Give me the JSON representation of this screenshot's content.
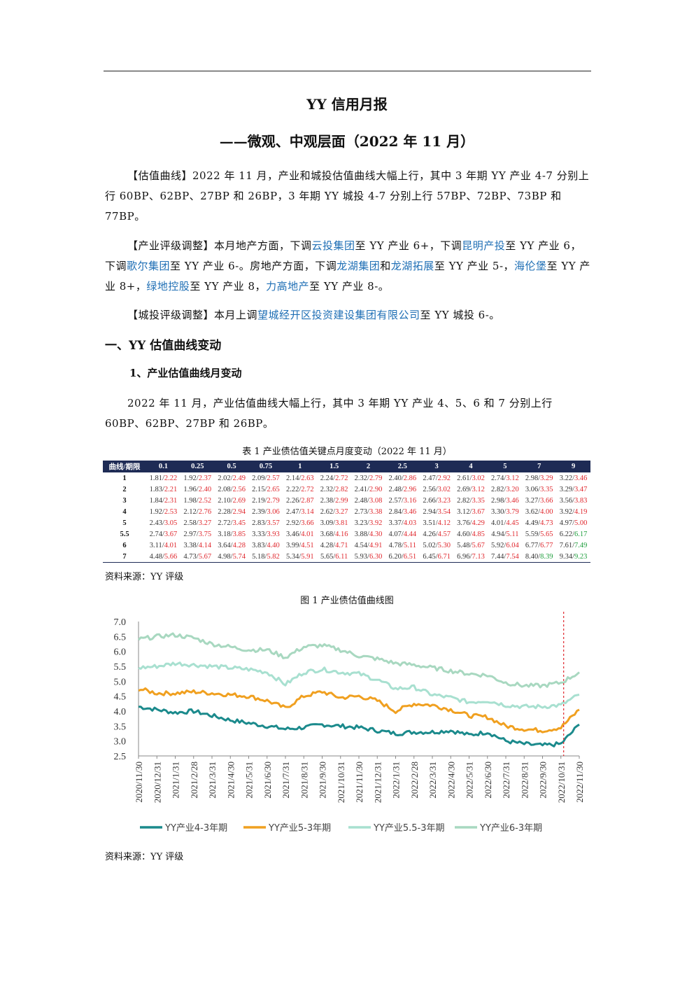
{
  "doc": {
    "title": "YY 信用月报",
    "subtitle": "——微观、中观层面（2022 年 11 月）"
  },
  "summary": {
    "valuation_label": "【估值曲线】",
    "valuation_text": "2022 年 11 月，产业和城投估值曲线大幅上行，其中 3 年期 YY 产业 4-7 分别上行 60BP、62BP、27BP 和 26BP，3 年期 YY 城投 4-7 分别上行 57BP、72BP、73BP 和 77BP。",
    "industry_label": "【产业评级调整】",
    "industry_p1": "本月地产方面，下调",
    "industry_e1": "云投集团",
    "industry_p2": "至 YY 产业 6+，下调",
    "industry_e2": "昆明产投",
    "industry_p3": "至 YY 产业 6，下调",
    "industry_e3": "歌尔集团",
    "industry_p4": "至 YY 产业 6-。房地产方面，下调",
    "industry_e4": "龙湖集团",
    "industry_p5": "和",
    "industry_e5": "龙湖拓展",
    "industry_p6": "至 YY 产业 5-，",
    "industry_e6": "海伦堡",
    "industry_p7": "至 YY 产业 8+，",
    "industry_e7": "绿地控股",
    "industry_p8": "至 YY 产业 8，",
    "industry_e8": "力高地产",
    "industry_p9": "至 YY 产业 8-。",
    "city_label": "【城投评级调整】",
    "city_p1": "本月上调",
    "city_e1": "望城经开区投资建设集团有限公司",
    "city_p2": "至 YY 城投 6-。"
  },
  "section1": {
    "heading": "一、YY 估值曲线变动"
  },
  "section1_1": {
    "heading": "1、产业估值曲线月变动",
    "text": "2022 年 11 月，产业估值曲线大幅上行，其中 3 年期 YY 产业 4、5、6 和 7 分别上行 60BP、62BP、27BP 和 26BP。"
  },
  "table1": {
    "caption": "表 1  产业债估值关键点月度变动（2022 年 11 月）",
    "corner": "曲线/期限",
    "headers": [
      "0.1",
      "0.25",
      "0.5",
      "0.75",
      "1",
      "1.5",
      "2",
      "2.5",
      "3",
      "4",
      "5",
      "7",
      "9"
    ],
    "rows": [
      {
        "label": "1",
        "cells": [
          [
            "1.81",
            "2.22"
          ],
          [
            "1.92",
            "2.37"
          ],
          [
            "2.02",
            "2.49"
          ],
          [
            "2.09",
            "2.57"
          ],
          [
            "2.14",
            "2.63"
          ],
          [
            "2.24",
            "2.72"
          ],
          [
            "2.32",
            "2.79"
          ],
          [
            "2.40",
            "2.86"
          ],
          [
            "2.47",
            "2.92"
          ],
          [
            "2.61",
            "3.02"
          ],
          [
            "2.74",
            "3.12"
          ],
          [
            "2.98",
            "3.29"
          ],
          [
            "3.22",
            "3.46"
          ]
        ]
      },
      {
        "label": "2",
        "cells": [
          [
            "1.83",
            "2.21"
          ],
          [
            "1.96",
            "2.40"
          ],
          [
            "2.08",
            "2.56"
          ],
          [
            "2.15",
            "2.65"
          ],
          [
            "2.22",
            "2.72"
          ],
          [
            "2.32",
            "2.82"
          ],
          [
            "2.41",
            "2.90"
          ],
          [
            "2.48",
            "2.96"
          ],
          [
            "2.56",
            "3.02"
          ],
          [
            "2.69",
            "3.12"
          ],
          [
            "2.82",
            "3.20"
          ],
          [
            "3.06",
            "3.35"
          ],
          [
            "3.29",
            "3.47"
          ]
        ]
      },
      {
        "label": "3",
        "cells": [
          [
            "1.84",
            "2.31"
          ],
          [
            "1.98",
            "2.52"
          ],
          [
            "2.10",
            "2.69"
          ],
          [
            "2.19",
            "2.79"
          ],
          [
            "2.26",
            "2.87"
          ],
          [
            "2.38",
            "2.99"
          ],
          [
            "2.48",
            "3.08"
          ],
          [
            "2.57",
            "3.16"
          ],
          [
            "2.66",
            "3.23"
          ],
          [
            "2.82",
            "3.35"
          ],
          [
            "2.98",
            "3.46"
          ],
          [
            "3.27",
            "3.66"
          ],
          [
            "3.56",
            "3.83"
          ]
        ]
      },
      {
        "label": "4",
        "cells": [
          [
            "1.92",
            "2.53"
          ],
          [
            "2.12",
            "2.76"
          ],
          [
            "2.28",
            "2.94"
          ],
          [
            "2.39",
            "3.06"
          ],
          [
            "2.47",
            "3.14"
          ],
          [
            "2.62",
            "3.27"
          ],
          [
            "2.73",
            "3.38"
          ],
          [
            "2.84",
            "3.46"
          ],
          [
            "2.94",
            "3.54"
          ],
          [
            "3.12",
            "3.67"
          ],
          [
            "3.30",
            "3.79"
          ],
          [
            "3.62",
            "4.00"
          ],
          [
            "3.92",
            "4.19"
          ]
        ]
      },
      {
        "label": "5",
        "cells": [
          [
            "2.43",
            "3.05"
          ],
          [
            "2.58",
            "3.27"
          ],
          [
            "2.72",
            "3.45"
          ],
          [
            "2.83",
            "3.57"
          ],
          [
            "2.92",
            "3.66"
          ],
          [
            "3.09",
            "3.81"
          ],
          [
            "3.23",
            "3.92"
          ],
          [
            "3.37",
            "4.03"
          ],
          [
            "3.51",
            "4.12"
          ],
          [
            "3.76",
            "4.29"
          ],
          [
            "4.01",
            "4.45"
          ],
          [
            "4.49",
            "4.73"
          ],
          [
            "4.97",
            "5.00"
          ]
        ]
      },
      {
        "label": "5.5",
        "cells": [
          [
            "2.74",
            "3.67"
          ],
          [
            "2.97",
            "3.75"
          ],
          [
            "3.18",
            "3.85"
          ],
          [
            "3.33",
            "3.93"
          ],
          [
            "3.46",
            "4.01"
          ],
          [
            "3.68",
            "4.16"
          ],
          [
            "3.88",
            "4.30"
          ],
          [
            "4.07",
            "4.44"
          ],
          [
            "4.26",
            "4.57"
          ],
          [
            "4.60",
            "4.85"
          ],
          [
            "4.94",
            "5.11"
          ],
          [
            "5.59",
            "5.65"
          ],
          [
            "6.22",
            "6.17"
          ]
        ]
      },
      {
        "label": "6",
        "cells": [
          [
            "3.11",
            "4.01"
          ],
          [
            "3.38",
            "4.14"
          ],
          [
            "3.64",
            "4.28"
          ],
          [
            "3.83",
            "4.40"
          ],
          [
            "3.99",
            "4.51"
          ],
          [
            "4.28",
            "4.71"
          ],
          [
            "4.54",
            "4.91"
          ],
          [
            "4.78",
            "5.11"
          ],
          [
            "5.02",
            "5.30"
          ],
          [
            "5.48",
            "5.67"
          ],
          [
            "5.92",
            "6.04"
          ],
          [
            "6.77",
            "6.77"
          ],
          [
            "7.61",
            "7.49"
          ]
        ]
      },
      {
        "label": "7",
        "cells": [
          [
            "4.48",
            "5.66"
          ],
          [
            "4.73",
            "5.67"
          ],
          [
            "4.98",
            "5.74"
          ],
          [
            "5.18",
            "5.82"
          ],
          [
            "5.34",
            "5.91"
          ],
          [
            "5.65",
            "6.11"
          ],
          [
            "5.93",
            "6.30"
          ],
          [
            "6.20",
            "6.51"
          ],
          [
            "6.45",
            "6.71"
          ],
          [
            "6.96",
            "7.13"
          ],
          [
            "7.44",
            "7.54"
          ],
          [
            "8.40",
            "8.39"
          ],
          [
            "9.34",
            "9.23"
          ]
        ]
      }
    ],
    "source": "资料来源：YY 评级"
  },
  "figure1": {
    "caption": "图 1  产业债估值曲线图",
    "source": "资料来源：YY 评级"
  },
  "chart_data": {
    "type": "line",
    "title": "",
    "xlabel": "",
    "ylabel": "",
    "ylim": [
      2.5,
      7.0
    ],
    "yticks": [
      "2.5",
      "3.0",
      "3.5",
      "4.0",
      "4.5",
      "5.0",
      "5.5",
      "6.0",
      "6.5",
      "7.0"
    ],
    "x": [
      "2020/11/30",
      "2020/12/31",
      "2021/1/31",
      "2021/2/28",
      "2021/3/31",
      "2021/4/30",
      "2021/5/31",
      "2021/6/30",
      "2021/7/31",
      "2021/8/31",
      "2021/9/30",
      "2021/10/31",
      "2021/11/30",
      "2021/12/31",
      "2022/1/31",
      "2022/2/28",
      "2022/3/31",
      "2022/4/30",
      "2022/5/31",
      "2022/6/30",
      "2022/7/31",
      "2022/8/31",
      "2022/9/30",
      "2022/10/31",
      "2022/11/30"
    ],
    "marker_line": "2022/10/31",
    "series": [
      {
        "name": "YY产业4-3年期",
        "color": "#1b8a8c",
        "values": [
          4.15,
          4.05,
          3.95,
          4.0,
          3.85,
          3.7,
          3.6,
          3.5,
          3.4,
          3.45,
          3.55,
          3.5,
          3.45,
          3.35,
          3.25,
          3.3,
          3.3,
          3.35,
          3.2,
          3.3,
          3.0,
          2.9,
          2.85,
          2.9,
          3.55
        ]
      },
      {
        "name": "YY产业5-3年期",
        "color": "#f0a020",
        "values": [
          4.75,
          4.6,
          4.6,
          4.65,
          4.6,
          4.55,
          4.5,
          4.35,
          4.1,
          4.5,
          4.65,
          4.45,
          4.5,
          4.35,
          4.0,
          4.25,
          4.2,
          4.05,
          3.85,
          3.8,
          3.5,
          3.4,
          3.35,
          3.45,
          4.05
        ]
      },
      {
        "name": "YY产业5.5-3年期",
        "color": "#a8e0d0",
        "values": [
          5.45,
          5.5,
          5.6,
          5.55,
          5.5,
          5.45,
          5.4,
          5.3,
          4.9,
          5.3,
          5.4,
          5.3,
          5.25,
          5.05,
          4.75,
          4.8,
          4.55,
          4.45,
          4.3,
          4.35,
          4.2,
          4.15,
          4.15,
          4.2,
          4.55
        ]
      },
      {
        "name": "YY产业6-3年期",
        "color": "#a8d8c0",
        "values": [
          6.4,
          6.5,
          6.55,
          6.45,
          6.25,
          6.15,
          6.05,
          6.05,
          5.8,
          6.15,
          6.2,
          6.05,
          5.85,
          5.75,
          5.6,
          5.55,
          5.45,
          5.35,
          5.25,
          5.2,
          4.95,
          4.85,
          4.85,
          4.95,
          5.3
        ]
      }
    ],
    "legend_position": "bottom"
  }
}
